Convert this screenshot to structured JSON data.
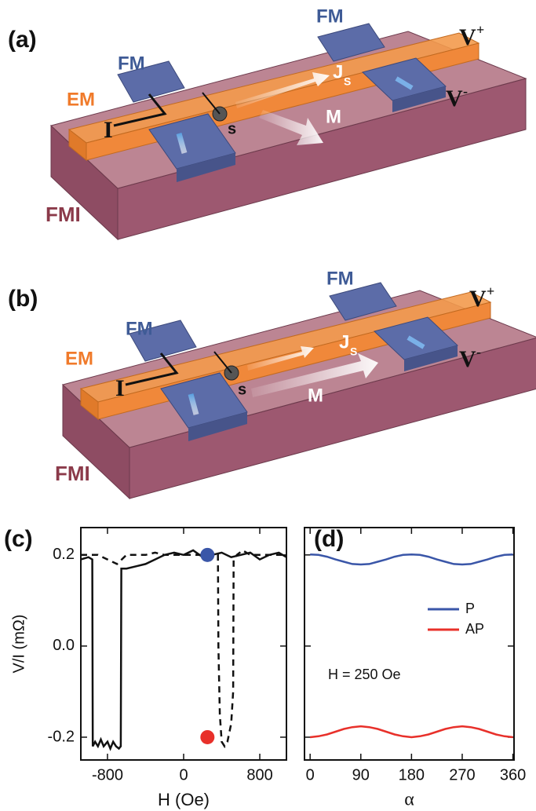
{
  "diagrams": [
    {
      "label": "(a)",
      "fm": [
        "FM",
        "FM"
      ],
      "em": "EM",
      "current": "I",
      "spin": "s",
      "spin_current": {
        "base": "J",
        "sub": "S"
      },
      "magnetization": "M",
      "v_plus": {
        "base": "V",
        "sup": "+"
      },
      "v_minus": {
        "base": "V",
        "sup": "-"
      },
      "substrate": "FMI"
    },
    {
      "label": "(b)",
      "fm": [
        "FM",
        "FM"
      ],
      "em": "EM",
      "current": "I",
      "spin": "s",
      "spin_current": {
        "base": "J",
        "sub": "S"
      },
      "magnetization": "M",
      "v_plus": {
        "base": "V",
        "sup": "+"
      },
      "v_minus": {
        "base": "V",
        "sup": "-"
      },
      "substrate": "FMI"
    }
  ],
  "chart_data": [
    {
      "type": "line",
      "panel_label": "(c)",
      "x_label": "H (Oe)",
      "y_label": "V/I (mΩ)",
      "xlim": [
        -1080,
        1080
      ],
      "xticks": [
        -800,
        0,
        800
      ],
      "ylim": [
        -0.25,
        0.26
      ],
      "yticks": [
        0.2,
        {
          "value": 0,
          "label": "0.0"
        },
        -0.2
      ],
      "series": [
        {
          "color": "#111111",
          "line_style": "solid",
          "x": [
            -1080,
            -1000,
            -960,
            -955,
            -930,
            -900,
            -870,
            -840,
            -800,
            -770,
            -740,
            -710,
            -680,
            -660,
            -655,
            -600,
            -500,
            -400,
            -300,
            -200,
            -100,
            0,
            100,
            200,
            300,
            400,
            500,
            600,
            700,
            800,
            900,
            1000,
            1080
          ],
          "values": [
            0.19,
            0.195,
            0.19,
            -0.22,
            -0.21,
            -0.22,
            -0.205,
            -0.22,
            -0.21,
            -0.225,
            -0.21,
            -0.22,
            -0.225,
            -0.22,
            0.17,
            0.17,
            0.175,
            0.18,
            0.19,
            0.2,
            0.205,
            0.2,
            0.21,
            0.195,
            0.2,
            0.205,
            0.195,
            0.2,
            0.205,
            0.19,
            0.2,
            0.205,
            0.195
          ]
        },
        {
          "color": "#111111",
          "line_style": "dashed",
          "x": [
            -1080,
            -1000,
            -900,
            -800,
            -700,
            -600,
            -500,
            -400,
            -300,
            -200,
            -100,
            0,
            100,
            200,
            300,
            360,
            365,
            380,
            400,
            430,
            460,
            500,
            520,
            525,
            560,
            620,
            700,
            800,
            900,
            1000,
            1080
          ],
          "values": [
            0.2,
            0.2,
            0.2,
            0.19,
            0.18,
            0.2,
            0.2,
            0.2,
            0.205,
            0.2,
            0.2,
            0.2,
            0.2,
            0.2,
            0.2,
            0.2,
            0.0,
            -0.15,
            -0.21,
            -0.22,
            -0.21,
            -0.17,
            -0.1,
            0.19,
            0.2,
            0.21,
            0.2,
            0.2,
            0.2,
            0.2,
            0.2
          ]
        }
      ],
      "points": [
        {
          "x": 250,
          "y": 0.2,
          "color": "#3a56a8"
        },
        {
          "x": 250,
          "y": -0.2,
          "color": "#e8302a"
        }
      ]
    },
    {
      "type": "line",
      "panel_label": "(d)",
      "x_label": "α",
      "annotation": "H = 250 Oe",
      "legend": "right",
      "xlim": [
        -10,
        362
      ],
      "xticks": [
        0,
        90,
        180,
        270,
        360
      ],
      "ylim": [
        -0.25,
        0.26
      ],
      "yticks": [
        0.2,
        0,
        -0.2
      ],
      "series": [
        {
          "name": "P",
          "color": "#3a56a8",
          "line_style": "solid",
          "x": [
            0,
            15,
            30,
            45,
            60,
            75,
            90,
            105,
            120,
            135,
            150,
            165,
            180,
            195,
            210,
            225,
            240,
            255,
            270,
            285,
            300,
            315,
            330,
            345,
            360
          ],
          "values": [
            0.201,
            0.2,
            0.196,
            0.19,
            0.185,
            0.18,
            0.179,
            0.18,
            0.185,
            0.19,
            0.196,
            0.2,
            0.201,
            0.2,
            0.196,
            0.19,
            0.185,
            0.18,
            0.179,
            0.18,
            0.185,
            0.19,
            0.196,
            0.2,
            0.201
          ]
        },
        {
          "name": "AP",
          "color": "#e8302a",
          "line_style": "solid",
          "x": [
            0,
            15,
            30,
            45,
            60,
            75,
            90,
            105,
            120,
            135,
            150,
            165,
            180,
            195,
            210,
            225,
            240,
            255,
            270,
            285,
            300,
            315,
            330,
            345,
            360
          ],
          "values": [
            -0.2,
            -0.198,
            -0.194,
            -0.188,
            -0.182,
            -0.178,
            -0.176,
            -0.178,
            -0.182,
            -0.188,
            -0.194,
            -0.198,
            -0.2,
            -0.198,
            -0.194,
            -0.188,
            -0.182,
            -0.178,
            -0.176,
            -0.178,
            -0.182,
            -0.188,
            -0.194,
            -0.198,
            -0.2
          ]
        }
      ]
    }
  ]
}
